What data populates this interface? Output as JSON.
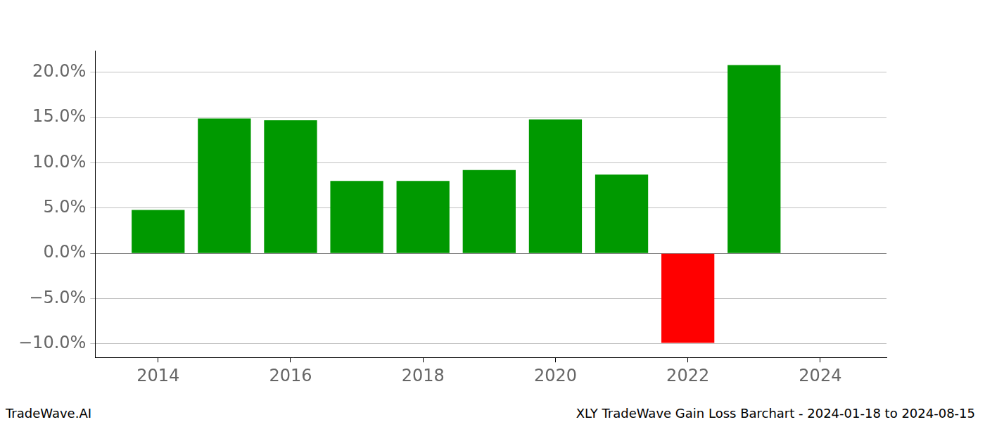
{
  "chart_data": {
    "type": "bar",
    "title": "XLY TradeWave Gain Loss Barchart - 2024-01-18 to 2024-08-15",
    "annotations": [
      "TradeWave.AI"
    ],
    "x": [
      2014,
      2015,
      2016,
      2017,
      2018,
      2019,
      2020,
      2021,
      2022,
      2023
    ],
    "values": [
      4.8,
      14.9,
      14.7,
      8.0,
      8.0,
      9.2,
      14.8,
      8.7,
      -9.9,
      20.8
    ],
    "colors": [
      "#009900",
      "#009900",
      "#009900",
      "#009900",
      "#009900",
      "#009900",
      "#009900",
      "#009900",
      "#ff0000",
      "#009900"
    ],
    "xlim": [
      2013.05,
      2025.0
    ],
    "xticks": [
      2014,
      2016,
      2018,
      2020,
      2022,
      2024
    ],
    "ylim": [
      -11.5,
      22.4
    ],
    "yticks": [
      {
        "value": -10,
        "label": "−10.0%"
      },
      {
        "value": -5,
        "label": "−5.0%"
      },
      {
        "value": 0,
        "label": "0.0%"
      },
      {
        "value": 5,
        "label": "5.0%"
      },
      {
        "value": 10,
        "label": "10.0%"
      },
      {
        "value": 15,
        "label": "15.0%"
      },
      {
        "value": 20,
        "label": "20.0%"
      }
    ],
    "grid": true
  }
}
